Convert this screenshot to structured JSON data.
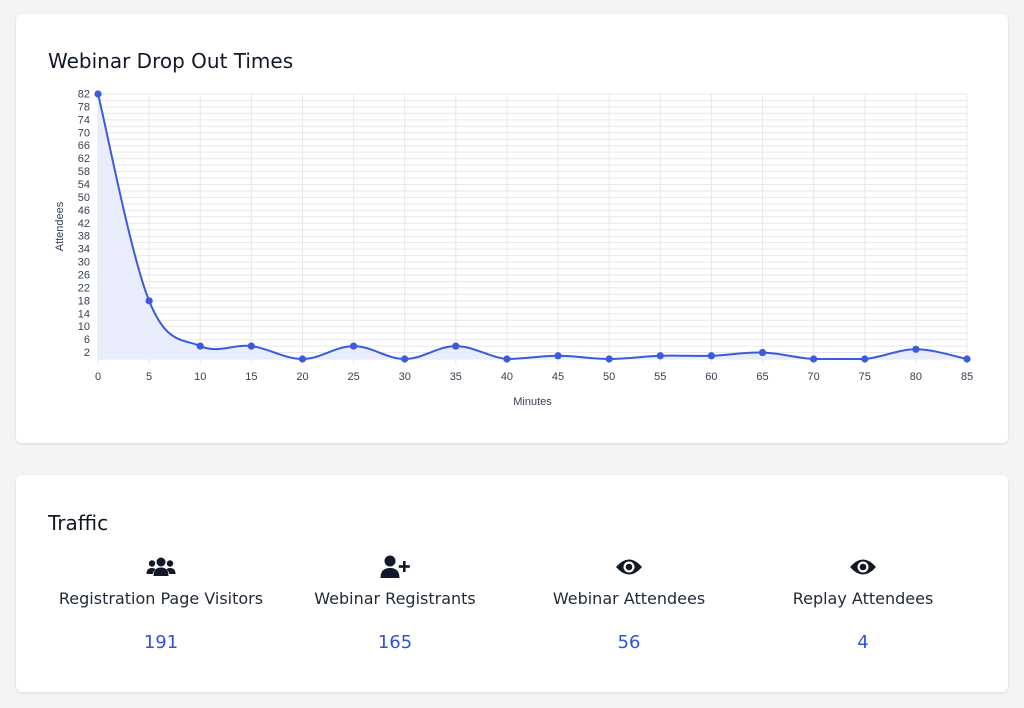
{
  "chart_card": {
    "title": "Webinar Drop Out Times"
  },
  "chart_data": {
    "type": "area",
    "title": "Webinar Drop Out Times",
    "xlabel": "Minutes",
    "ylabel": "Attendees",
    "x": [
      0,
      5,
      10,
      15,
      20,
      25,
      30,
      35,
      40,
      45,
      50,
      55,
      60,
      65,
      70,
      75,
      80,
      85
    ],
    "values": [
      82,
      18,
      4,
      4,
      0,
      4,
      0,
      4,
      0,
      1,
      0,
      1,
      1,
      2,
      0,
      0,
      3,
      0
    ],
    "xlim": [
      0,
      85
    ],
    "ylim": [
      0,
      82
    ],
    "y_ticks": [
      2,
      6,
      10,
      14,
      18,
      22,
      26,
      30,
      34,
      38,
      42,
      46,
      50,
      54,
      58,
      62,
      66,
      70,
      74,
      78,
      82
    ],
    "grid": true,
    "line_color": "#3b5bdb",
    "fill_color": "#e8ebfb"
  },
  "traffic": {
    "title": "Traffic",
    "stats": [
      {
        "icon": "users-icon",
        "label": "Registration Page Visitors",
        "value": "191"
      },
      {
        "icon": "user-plus-icon",
        "label": "Webinar Registrants",
        "value": "165"
      },
      {
        "icon": "eye-icon",
        "label": "Webinar Attendees",
        "value": "56"
      },
      {
        "icon": "eye-icon",
        "label": "Replay Attendees",
        "value": "4"
      }
    ]
  },
  "colors": {
    "accent": "#2f54d6",
    "background": "#f3f4f6",
    "card": "#ffffff"
  }
}
